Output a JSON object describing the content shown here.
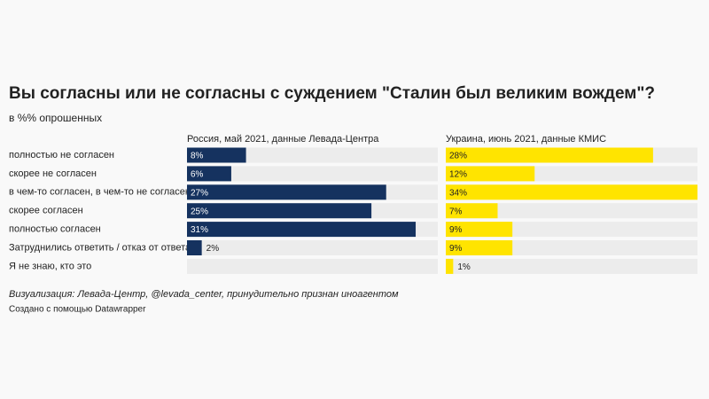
{
  "chart_data": {
    "type": "bar",
    "title": "Вы согласны или не согласны с суждением \"Сталин был великим вождем\"?",
    "subtitle": "в %% опрошенных",
    "categories": [
      "полностью не согласен",
      "скорее не согласен",
      "в чем-то согласен, в чем-то не согласен",
      "скорее согласен",
      "полностью согласен",
      "Затруднились ответить / отказ от ответа",
      "Я не знаю, кто это"
    ],
    "series": [
      {
        "name": "Россия, май 2021, данные Левада-Центра",
        "color": "#15325f",
        "values": [
          8,
          6,
          27,
          25,
          31,
          2,
          null
        ],
        "value_labels": [
          "8%",
          "6%",
          "27%",
          "25%",
          "31%",
          "2%",
          null
        ]
      },
      {
        "name": "Украина, июнь 2021, данные КМИС",
        "color": "#ffe400",
        "values": [
          28,
          12,
          34,
          7,
          9,
          9,
          1
        ],
        "value_labels": [
          "28%",
          "12%",
          "34%",
          "7%",
          "9%",
          "9%",
          "1%"
        ]
      }
    ],
    "xlim": [
      0,
      34
    ],
    "notes": "Визуализация: Левада-Центр, @levada_center, принудительно признан иноагентом",
    "credit": "Создано с помощью Datawrapper"
  }
}
